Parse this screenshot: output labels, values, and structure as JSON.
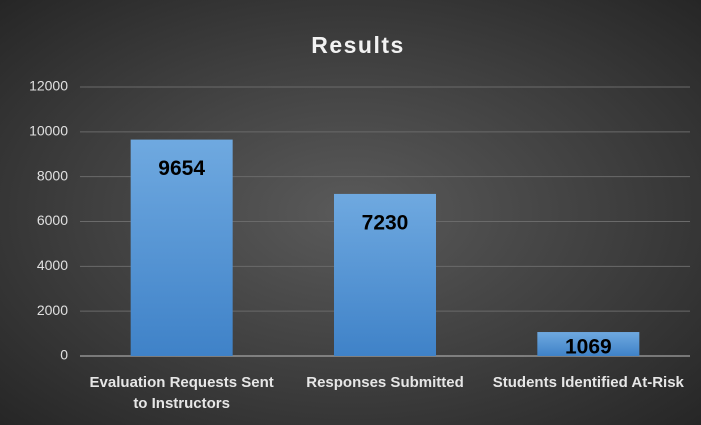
{
  "chart_data": {
    "type": "bar",
    "title": "Results",
    "categories": [
      "Evaluation Requests Sent to Instructors",
      "Responses Submitted",
      "Students Identified At-Risk"
    ],
    "values": [
      9654,
      7230,
      1069
    ],
    "color": "#5b9bd5",
    "ylim": [
      0,
      12000
    ],
    "yticks": [
      0,
      2000,
      4000,
      6000,
      8000,
      10000,
      12000
    ],
    "grid": true
  }
}
